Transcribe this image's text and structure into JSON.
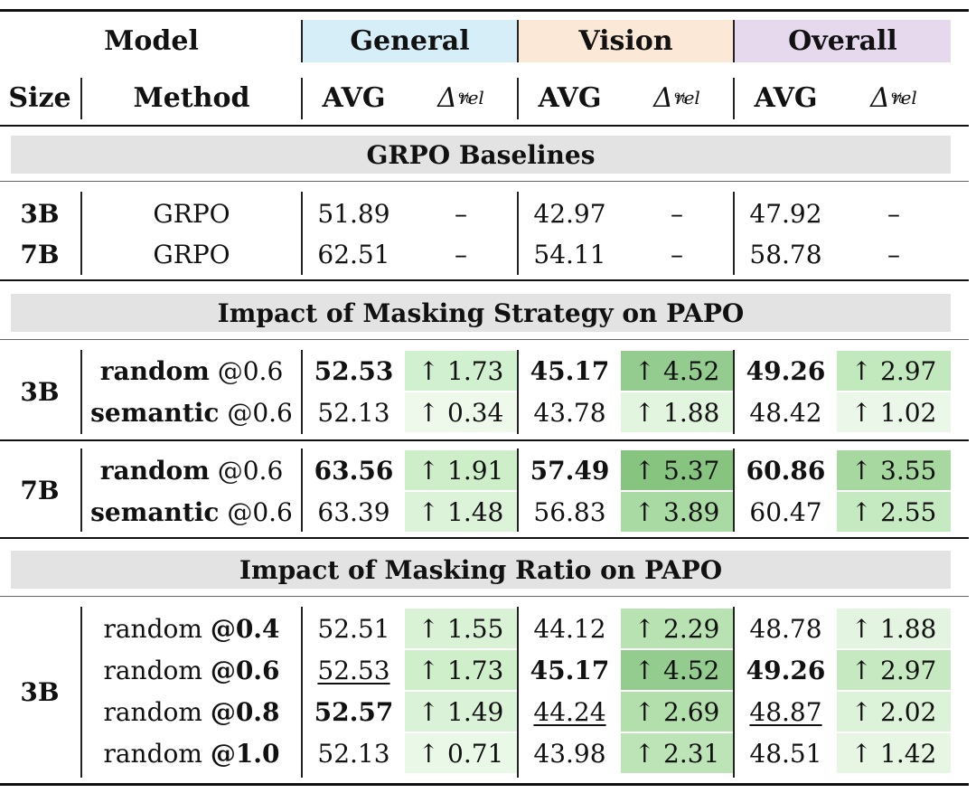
{
  "header": {
    "model": "Model",
    "general": "General",
    "vision": "Vision",
    "overall": "Overall",
    "size": "Size",
    "method": "Method",
    "avg": "AVG",
    "delta_symbol": "Δ",
    "delta_sup": "%",
    "delta_sub": "rel"
  },
  "colors": {
    "general_header": "#d6eef8",
    "vision_header": "#fbe8d6",
    "overall_header": "#e6d9ee",
    "band": "#e3e3e3"
  },
  "sections": {
    "grpo": "GRPO Baselines",
    "strategy": "Impact of Masking Strategy on PAPO",
    "ratio": "Impact of Masking Ratio on PAPO"
  },
  "grpo": {
    "r1": {
      "size": "3B",
      "method": "GRPO",
      "gen_avg": "51.89",
      "gen_delta": "–",
      "vis_avg": "42.97",
      "vis_delta": "–",
      "ov_avg": "47.92",
      "ov_delta": "–"
    },
    "r2": {
      "size": "7B",
      "method": "GRPO",
      "gen_avg": "62.51",
      "gen_delta": "–",
      "vis_avg": "54.11",
      "vis_delta": "–",
      "ov_avg": "58.78",
      "ov_delta": "–"
    }
  },
  "strategy3b": {
    "size": "3B",
    "r1": {
      "method_bold": "random",
      "method_rest": " @0.6",
      "gen_avg": "52.53",
      "gen_delta": "↑ 1.73",
      "vis_avg": "45.17",
      "vis_delta": "↑ 4.52",
      "ov_avg": "49.26",
      "ov_delta": "↑ 2.97"
    },
    "r2": {
      "method_bold": "semantic",
      "method_rest": " @0.6",
      "gen_avg": "52.13",
      "gen_delta": "↑ 0.34",
      "vis_avg": "43.78",
      "vis_delta": "↑ 1.88",
      "ov_avg": "48.42",
      "ov_delta": "↑ 1.02"
    }
  },
  "strategy7b": {
    "size": "7B",
    "r1": {
      "method_bold": "random",
      "method_rest": " @0.6",
      "gen_avg": "63.56",
      "gen_delta": "↑ 1.91",
      "vis_avg": "57.49",
      "vis_delta": "↑ 5.37",
      "ov_avg": "60.86",
      "ov_delta": "↑ 3.55"
    },
    "r2": {
      "method_bold": "semantic",
      "method_rest": " @0.6",
      "gen_avg": "63.39",
      "gen_delta": "↑ 1.48",
      "vis_avg": "56.83",
      "vis_delta": "↑ 3.89",
      "ov_avg": "60.47",
      "ov_delta": "↑ 2.55"
    }
  },
  "ratio3b": {
    "size": "3B",
    "r1": {
      "method_plain": "random ",
      "method_bold": "@0.4",
      "gen_avg": "52.51",
      "gen_delta": "↑ 1.55",
      "vis_avg": "44.12",
      "vis_delta": "↑ 2.29",
      "ov_avg": "48.78",
      "ov_delta": "↑ 1.88"
    },
    "r2": {
      "method_plain": "random ",
      "method_bold": "@0.6",
      "gen_avg": "52.53",
      "gen_delta": "↑ 1.73",
      "vis_avg": "45.17",
      "vis_delta": "↑ 4.52",
      "ov_avg": "49.26",
      "ov_delta": "↑ 2.97"
    },
    "r3": {
      "method_plain": "random ",
      "method_bold": "@0.8",
      "gen_avg": "52.57",
      "gen_delta": "↑ 1.49",
      "vis_avg": "44.24",
      "vis_delta": "↑ 2.69",
      "ov_avg": "48.87",
      "ov_delta": "↑ 2.02"
    },
    "r4": {
      "method_plain": "random ",
      "method_bold": "@1.0",
      "gen_avg": "52.13",
      "gen_delta": "↑ 0.71",
      "vis_avg": "43.98",
      "vis_delta": "↑ 2.31",
      "ov_avg": "48.51",
      "ov_delta": "↑ 1.42"
    }
  }
}
